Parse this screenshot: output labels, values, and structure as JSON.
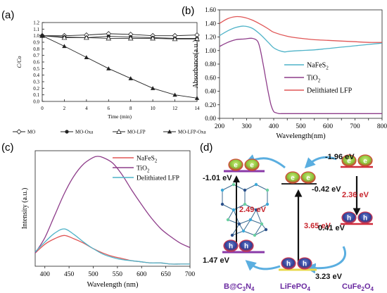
{
  "panel_labels": [
    "(a)",
    "(b)",
    "(c)",
    "(d)"
  ],
  "chart_data": [
    {
      "panel": "(a)",
      "type": "line",
      "title": "",
      "xlabel": "Time (min)",
      "ylabel": "C/Co",
      "xlim": [
        0,
        14
      ],
      "ylim": [
        0,
        1.2
      ],
      "xticks": [
        0,
        2,
        4,
        6,
        8,
        10,
        12,
        14
      ],
      "yticks": [
        0.0,
        0.1,
        0.2,
        0.3,
        0.4,
        0.5,
        0.6,
        0.7,
        0.8,
        0.9,
        1.0,
        1.1,
        1.2
      ],
      "ytick_labels": [
        "0.0",
        "0.1",
        "0.2",
        "0.3",
        "0.4",
        "0.5",
        "0.6",
        "0.7",
        "0.8",
        "0.9",
        "1.0",
        "1.1",
        "1.2"
      ],
      "grid": false,
      "legend": "bottom",
      "x": [
        0,
        2,
        4,
        6,
        8,
        10,
        12,
        14
      ],
      "series": [
        {
          "name": "MO",
          "marker": "open-diamond",
          "values": [
            1.0,
            1.0,
            1.01,
            1.03,
            1.02,
            1.0,
            1.0,
            1.01
          ]
        },
        {
          "name": "MO-Oxa",
          "marker": "filled-circle",
          "values": [
            1.0,
            0.98,
            0.97,
            0.99,
            0.98,
            0.97,
            0.96,
            0.96
          ]
        },
        {
          "name": "MO-LFP",
          "marker": "open-triangle",
          "values": [
            1.0,
            0.97,
            0.97,
            0.96,
            0.96,
            0.96,
            0.95,
            0.95
          ]
        },
        {
          "name": "MO-LFP-Oxa",
          "marker": "filled-triangle",
          "values": [
            1.0,
            0.84,
            0.67,
            0.5,
            0.35,
            0.2,
            0.1,
            0.05
          ]
        }
      ]
    },
    {
      "panel": "(b)",
      "type": "line",
      "title": "",
      "xlabel": "Wavelength(nm)",
      "ylabel": "Absorbance(a.u.)",
      "xlim": [
        200,
        800
      ],
      "ylim": [
        0,
        1.6
      ],
      "xticks": [
        200,
        250,
        300,
        350,
        400,
        450,
        500,
        550,
        600,
        650,
        700,
        750,
        800
      ],
      "yticks": [
        0.0,
        0.2,
        0.4,
        0.6,
        0.8,
        1.0,
        1.2,
        1.4,
        1.6
      ],
      "ytick_labels": [
        "0.00",
        "0.20",
        "0.40",
        "0.60",
        "0.80",
        "1.00",
        "1.20",
        "1.40",
        "1.60"
      ],
      "grid": false,
      "legend": "center-right",
      "series": [
        {
          "name": "NaFeS2",
          "color": "#4fb3c8",
          "x": [
            200,
            230,
            260,
            290,
            320,
            350,
            380,
            400,
            420,
            440,
            460,
            500,
            550,
            600,
            650,
            700,
            750,
            800
          ],
          "values": [
            1.22,
            1.29,
            1.34,
            1.36,
            1.33,
            1.24,
            1.12,
            1.04,
            1.0,
            0.98,
            0.99,
            1.0,
            1.01,
            1.03,
            1.05,
            1.07,
            1.09,
            1.11
          ]
        },
        {
          "name": "TiO2",
          "color": "#8e3d8a",
          "x": [
            200,
            230,
            260,
            290,
            320,
            340,
            350,
            360,
            370,
            380,
            390,
            400,
            410,
            420,
            440,
            500,
            600,
            700,
            800
          ],
          "values": [
            1.06,
            1.12,
            1.16,
            1.17,
            1.18,
            1.14,
            1.02,
            0.82,
            0.6,
            0.38,
            0.2,
            0.1,
            0.08,
            0.07,
            0.07,
            0.07,
            0.07,
            0.07,
            0.07
          ]
        },
        {
          "name": "Delithiated LFP",
          "color": "#e05656",
          "x": [
            200,
            230,
            260,
            290,
            320,
            350,
            380,
            400,
            450,
            500,
            550,
            600,
            650,
            700,
            750,
            800
          ],
          "values": [
            1.4,
            1.47,
            1.5,
            1.49,
            1.45,
            1.39,
            1.32,
            1.27,
            1.21,
            1.18,
            1.16,
            1.15,
            1.14,
            1.13,
            1.12,
            1.12
          ]
        }
      ],
      "legend_labels": [
        {
          "main": "NaFeS",
          "sub": "2"
        },
        {
          "main": "TiO",
          "sub": "2"
        },
        {
          "main": "Delithiated LFP",
          "sub": ""
        }
      ]
    },
    {
      "panel": "(c)",
      "type": "line",
      "title": "",
      "xlabel": "Wavelength (nm)",
      "ylabel": "Intensity (a.u.)",
      "xlim": [
        380,
        700
      ],
      "ylim": [
        0,
        1
      ],
      "xticks": [
        400,
        450,
        500,
        550,
        600,
        650,
        700
      ],
      "grid": false,
      "legend": "top-right",
      "series": [
        {
          "name": "NaFeS2",
          "color": "#e05656",
          "x": [
            380,
            400,
            420,
            440,
            460,
            480,
            500,
            520,
            540,
            560,
            580,
            600,
            620,
            640,
            660,
            680,
            700
          ],
          "values": [
            0.12,
            0.2,
            0.25,
            0.28,
            0.25,
            0.21,
            0.16,
            0.12,
            0.09,
            0.07,
            0.05,
            0.04,
            0.03,
            0.03,
            0.02,
            0.02,
            0.02
          ]
        },
        {
          "name": "TiO2",
          "color": "#8e3d8a",
          "x": [
            380,
            400,
            420,
            440,
            460,
            480,
            500,
            510,
            520,
            540,
            560,
            580,
            600,
            620,
            640,
            660,
            680,
            700
          ],
          "values": [
            0.12,
            0.26,
            0.46,
            0.66,
            0.82,
            0.93,
            0.99,
            1.0,
            0.99,
            0.94,
            0.83,
            0.69,
            0.56,
            0.44,
            0.34,
            0.27,
            0.21,
            0.17
          ]
        },
        {
          "name": "Delithiated LFP",
          "color": "#4fb3c8",
          "x": [
            380,
            400,
            420,
            440,
            460,
            480,
            500,
            520,
            540,
            560,
            580,
            600,
            620,
            640,
            660,
            680,
            700
          ],
          "values": [
            0.13,
            0.22,
            0.3,
            0.34,
            0.29,
            0.22,
            0.16,
            0.11,
            0.08,
            0.06,
            0.05,
            0.04,
            0.03,
            0.03,
            0.02,
            0.02,
            0.02
          ]
        }
      ],
      "legend_labels": [
        {
          "main": "NaFeS",
          "sub": "2"
        },
        {
          "main": "TiO",
          "sub": "2"
        },
        {
          "main": "Delithiated LFP",
          "sub": ""
        }
      ]
    }
  ],
  "diagram_d": {
    "electron_symbol": "e",
    "hole_symbol": "h",
    "materials": [
      {
        "main": "B@C",
        "sub": "3",
        "tail": "N",
        "sub2": "4"
      },
      {
        "main": "LiFePO",
        "sub": "4",
        "tail": "",
        "sub2": ""
      },
      {
        "main": "CuFe",
        "sub": "2",
        "tail": "O",
        "sub2": "4"
      }
    ],
    "energies": {
      "bc3n4_cb": "-1.01 eV",
      "bc3n4_vb": "1.47 eV",
      "bc3n4_gap": "2.49 eV",
      "lfp_cb": "-0.42 eV",
      "lfp_vb": "3.23 eV",
      "lfp_gap": "3.65 eV",
      "cfo_cb": "-1.96 eV",
      "cfo_vb": "0.41 eV",
      "cfo_gap": "2.36 eV"
    },
    "colors": {
      "electron": "#9fd04a",
      "electron_rim": "#d24a3a",
      "hole": "#3a4fa8",
      "hole_rim": "#cc3a52",
      "band": "#8a3aa8",
      "lfp_band": "#e8d84a",
      "gap_red": "#c8242c",
      "arrow": "#5aaee0",
      "label": "#6a2aa0"
    }
  }
}
